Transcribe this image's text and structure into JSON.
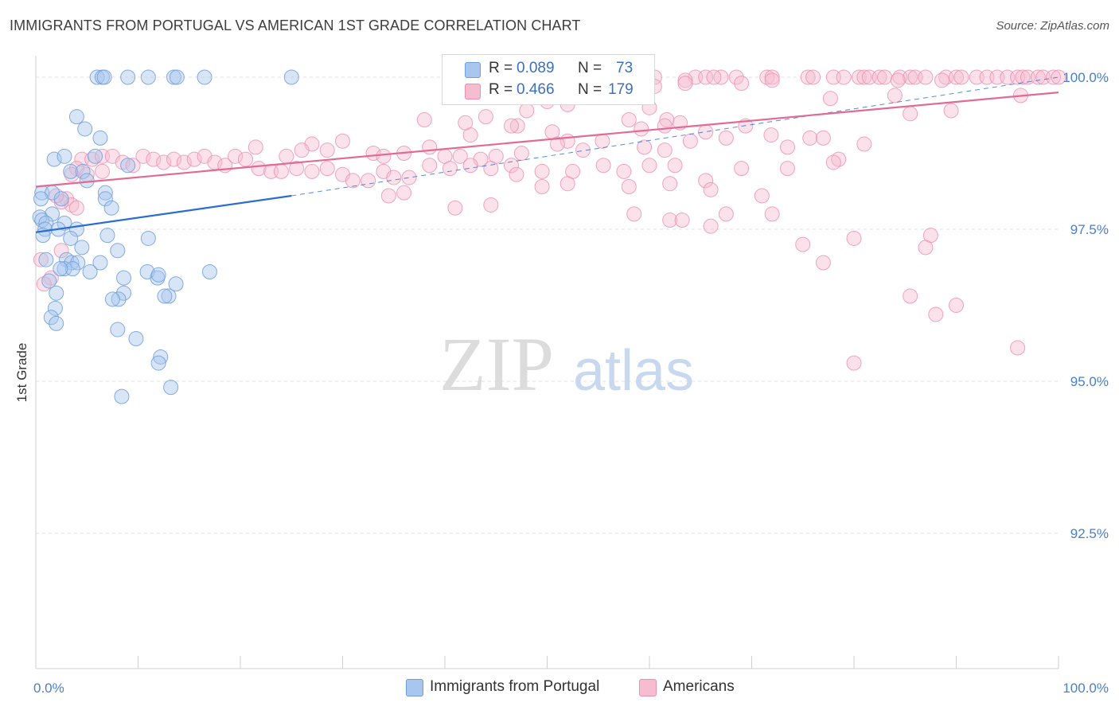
{
  "header": {
    "title": "IMMIGRANTS FROM PORTUGAL VS AMERICAN 1ST GRADE CORRELATION CHART",
    "source": "Source: ZipAtlas.com"
  },
  "watermark": {
    "zip": "ZIP",
    "atlas": "atlas"
  },
  "legend": {
    "series1": {
      "r_label": "R = ",
      "r_value": "0.089",
      "n_label": "N = ",
      "n_value": "73"
    },
    "series2": {
      "r_label": "R = ",
      "r_value": "0.466",
      "n_label": "N = ",
      "n_value": "179"
    }
  },
  "colors": {
    "blue_fill": "#a9c6ee",
    "blue_stroke": "#6f9fdc",
    "blue_line": "#2a6dd1",
    "pink_fill": "#f6bcd0",
    "pink_stroke": "#ec8fb0",
    "pink_line": "#e26b96",
    "tick": "#4a7fc8"
  },
  "chart_data": {
    "type": "scatter",
    "title": "IMMIGRANTS FROM PORTUGAL VS AMERICAN 1ST GRADE CORRELATION CHART",
    "xlabel": "",
    "ylabel": "1st Grade",
    "xlim": [
      0,
      100
    ],
    "ylim": [
      90.0,
      100.3
    ],
    "x_ticks": [
      "0.0%",
      "100.0%"
    ],
    "y_ticks": [
      {
        "value": 100.0,
        "label": "100.0%"
      },
      {
        "value": 97.5,
        "label": "97.5%"
      },
      {
        "value": 95.0,
        "label": "95.0%"
      },
      {
        "value": 92.5,
        "label": "92.5%"
      }
    ],
    "grid": true,
    "legend_position": "top-center",
    "series": [
      {
        "name": "Immigrants from Portugal",
        "r": 0.089,
        "n": 73,
        "trend": {
          "x": [
            0,
            25
          ],
          "y": [
            97.45,
            98.05
          ],
          "dashed_to": [
            100,
            100.0
          ]
        },
        "points": [
          [
            6.0,
            100.0
          ],
          [
            6.5,
            100.0
          ],
          [
            6.7,
            100.0
          ],
          [
            9.0,
            100.0
          ],
          [
            11.0,
            100.0
          ],
          [
            13.5,
            100.0
          ],
          [
            13.8,
            100.0
          ],
          [
            16.5,
            100.0
          ],
          [
            25.0,
            100.0
          ],
          [
            4.0,
            99.35
          ],
          [
            4.8,
            99.15
          ],
          [
            6.3,
            99.0
          ],
          [
            5.8,
            98.7
          ],
          [
            1.8,
            98.65
          ],
          [
            2.8,
            98.7
          ],
          [
            3.4,
            98.45
          ],
          [
            4.6,
            98.45
          ],
          [
            9.0,
            98.55
          ],
          [
            5.0,
            98.3
          ],
          [
            0.6,
            98.1
          ],
          [
            1.6,
            98.1
          ],
          [
            0.5,
            98.0
          ],
          [
            6.8,
            98.1
          ],
          [
            6.8,
            98.0
          ],
          [
            2.5,
            98.0
          ],
          [
            7.4,
            97.85
          ],
          [
            1.6,
            97.75
          ],
          [
            0.4,
            97.7
          ],
          [
            0.6,
            97.65
          ],
          [
            1.0,
            97.6
          ],
          [
            2.8,
            97.6
          ],
          [
            0.9,
            97.5
          ],
          [
            2.2,
            97.5
          ],
          [
            4.0,
            97.5
          ],
          [
            0.7,
            97.4
          ],
          [
            7.0,
            97.4
          ],
          [
            11.0,
            97.35
          ],
          [
            3.4,
            97.35
          ],
          [
            4.5,
            97.2
          ],
          [
            8.0,
            97.15
          ],
          [
            1.0,
            97.0
          ],
          [
            3.0,
            97.0
          ],
          [
            3.5,
            96.95
          ],
          [
            4.1,
            96.95
          ],
          [
            6.3,
            96.95
          ],
          [
            2.8,
            96.85
          ],
          [
            3.6,
            96.85
          ],
          [
            2.4,
            96.85
          ],
          [
            5.3,
            96.8
          ],
          [
            10.9,
            96.8
          ],
          [
            17.0,
            96.8
          ],
          [
            8.6,
            96.7
          ],
          [
            11.9,
            96.7
          ],
          [
            12.0,
            96.75
          ],
          [
            1.3,
            96.65
          ],
          [
            13.7,
            96.6
          ],
          [
            8.6,
            96.45
          ],
          [
            2.0,
            96.45
          ],
          [
            8.1,
            96.35
          ],
          [
            7.5,
            96.35
          ],
          [
            13.0,
            96.4
          ],
          [
            12.6,
            96.4
          ],
          [
            1.9,
            96.2
          ],
          [
            1.5,
            96.05
          ],
          [
            2.0,
            95.95
          ],
          [
            8.0,
            95.85
          ],
          [
            9.8,
            95.7
          ],
          [
            12.2,
            95.4
          ],
          [
            12.0,
            95.3
          ],
          [
            13.2,
            94.9
          ],
          [
            8.4,
            94.75
          ]
        ]
      },
      {
        "name": "Americans",
        "r": 0.466,
        "n": 179,
        "trend": {
          "x": [
            0,
            100
          ],
          "y": [
            98.2,
            99.75
          ]
        },
        "points": [
          [
            60.5,
            100.0
          ],
          [
            64.5,
            100.0
          ],
          [
            65.5,
            100.0
          ],
          [
            67.0,
            100.0
          ],
          [
            68.5,
            100.0
          ],
          [
            71.5,
            100.0
          ],
          [
            72.0,
            100.0
          ],
          [
            75.5,
            100.0
          ],
          [
            76.0,
            100.0
          ],
          [
            78.0,
            100.0
          ],
          [
            79.0,
            100.0
          ],
          [
            80.5,
            100.0
          ],
          [
            81.0,
            100.0
          ],
          [
            81.5,
            100.0
          ],
          [
            82.5,
            100.0
          ],
          [
            83.0,
            100.0
          ],
          [
            84.5,
            100.0
          ],
          [
            85.5,
            100.0
          ],
          [
            86.0,
            100.0
          ],
          [
            87.0,
            100.0
          ],
          [
            89.0,
            100.0
          ],
          [
            90.0,
            100.0
          ],
          [
            90.5,
            100.0
          ],
          [
            92.0,
            100.0
          ],
          [
            93.0,
            100.0
          ],
          [
            94.0,
            100.0
          ],
          [
            95.0,
            100.0
          ],
          [
            96.0,
            100.0
          ],
          [
            96.5,
            100.0
          ],
          [
            97.0,
            100.0
          ],
          [
            98.0,
            100.0
          ],
          [
            98.5,
            100.0
          ],
          [
            99.5,
            100.0
          ],
          [
            100.0,
            100.0
          ],
          [
            66.3,
            100.0
          ],
          [
            63.5,
            99.95
          ],
          [
            60.5,
            99.85
          ],
          [
            63.5,
            99.9
          ],
          [
            69.0,
            99.9
          ],
          [
            72.0,
            99.95
          ],
          [
            84.3,
            99.95
          ],
          [
            88.6,
            99.95
          ],
          [
            58.5,
            99.75
          ],
          [
            77.7,
            99.65
          ],
          [
            84.0,
            99.7
          ],
          [
            96.3,
            99.7
          ],
          [
            50.0,
            99.6
          ],
          [
            52.0,
            99.55
          ],
          [
            60.0,
            99.5
          ],
          [
            48.0,
            99.45
          ],
          [
            44.0,
            99.35
          ],
          [
            38.0,
            99.3
          ],
          [
            61.7,
            99.3
          ],
          [
            58.0,
            99.3
          ],
          [
            63.0,
            99.25
          ],
          [
            61.5,
            99.2
          ],
          [
            69.4,
            99.2
          ],
          [
            85.5,
            99.4
          ],
          [
            47.1,
            99.2
          ],
          [
            89.5,
            99.45
          ],
          [
            42.5,
            99.05
          ],
          [
            42.0,
            99.25
          ],
          [
            46.5,
            99.2
          ],
          [
            50.5,
            99.1
          ],
          [
            59.2,
            99.15
          ],
          [
            65.5,
            99.1
          ],
          [
            71.9,
            99.05
          ],
          [
            75.7,
            99.0
          ],
          [
            52.0,
            98.95
          ],
          [
            55.4,
            98.95
          ],
          [
            51.0,
            98.9
          ],
          [
            30.0,
            98.95
          ],
          [
            27.0,
            98.9
          ],
          [
            21.5,
            98.85
          ],
          [
            26.0,
            98.8
          ],
          [
            24.5,
            98.7
          ],
          [
            28.5,
            98.8
          ],
          [
            33.0,
            98.75
          ],
          [
            34.0,
            98.7
          ],
          [
            36.0,
            98.75
          ],
          [
            38.5,
            98.85
          ],
          [
            40.0,
            98.7
          ],
          [
            41.5,
            98.7
          ],
          [
            43.5,
            98.65
          ],
          [
            45.0,
            98.7
          ],
          [
            47.5,
            98.75
          ],
          [
            53.5,
            98.8
          ],
          [
            59.5,
            98.85
          ],
          [
            61.5,
            98.8
          ],
          [
            64.0,
            98.95
          ],
          [
            67.5,
            99.0
          ],
          [
            73.5,
            98.85
          ],
          [
            77.0,
            99.0
          ],
          [
            78.5,
            98.65
          ],
          [
            81.0,
            98.9
          ],
          [
            4.5,
            98.65
          ],
          [
            5.5,
            98.65
          ],
          [
            6.5,
            98.7
          ],
          [
            7.5,
            98.7
          ],
          [
            8.5,
            98.6
          ],
          [
            9.5,
            98.55
          ],
          [
            10.5,
            98.7
          ],
          [
            11.5,
            98.65
          ],
          [
            12.5,
            98.6
          ],
          [
            13.5,
            98.65
          ],
          [
            14.5,
            98.6
          ],
          [
            15.5,
            98.65
          ],
          [
            16.5,
            98.7
          ],
          [
            17.5,
            98.6
          ],
          [
            18.5,
            98.55
          ],
          [
            19.5,
            98.7
          ],
          [
            20.5,
            98.65
          ],
          [
            21.8,
            98.5
          ],
          [
            23.0,
            98.45
          ],
          [
            24.0,
            98.45
          ],
          [
            25.5,
            98.5
          ],
          [
            27.0,
            98.45
          ],
          [
            28.5,
            98.5
          ],
          [
            30.0,
            98.4
          ],
          [
            31.0,
            98.3
          ],
          [
            32.5,
            98.3
          ],
          [
            34.0,
            98.45
          ],
          [
            35.0,
            98.35
          ],
          [
            36.5,
            98.35
          ],
          [
            38.5,
            98.55
          ],
          [
            40.5,
            98.5
          ],
          [
            42.5,
            98.55
          ],
          [
            44.5,
            98.5
          ],
          [
            46.5,
            98.55
          ],
          [
            49.5,
            98.45
          ],
          [
            52.5,
            98.45
          ],
          [
            55.5,
            98.55
          ],
          [
            57.5,
            98.45
          ],
          [
            60.0,
            98.55
          ],
          [
            62.5,
            98.55
          ],
          [
            65.5,
            98.3
          ],
          [
            69.0,
            98.5
          ],
          [
            73.5,
            98.5
          ],
          [
            78.0,
            98.6
          ],
          [
            4.0,
            98.5
          ],
          [
            3.5,
            98.4
          ],
          [
            5.0,
            98.4
          ],
          [
            6.5,
            98.45
          ],
          [
            3.0,
            98.0
          ],
          [
            3.5,
            97.9
          ],
          [
            2.5,
            97.95
          ],
          [
            4.0,
            97.85
          ],
          [
            2.0,
            98.05
          ],
          [
            47.0,
            98.4
          ],
          [
            49.5,
            98.2
          ],
          [
            52.0,
            98.25
          ],
          [
            58.0,
            98.2
          ],
          [
            62.0,
            98.25
          ],
          [
            66.0,
            98.15
          ],
          [
            71.0,
            98.05
          ],
          [
            58.5,
            97.75
          ],
          [
            62.0,
            97.65
          ],
          [
            63.2,
            97.65
          ],
          [
            66.0,
            97.55
          ],
          [
            67.5,
            97.75
          ],
          [
            72.0,
            97.75
          ],
          [
            75.0,
            97.25
          ],
          [
            77.0,
            96.95
          ],
          [
            80.0,
            97.35
          ],
          [
            87.5,
            97.4
          ],
          [
            87.0,
            97.2
          ],
          [
            85.5,
            96.4
          ],
          [
            88.0,
            96.1
          ],
          [
            90.0,
            96.25
          ],
          [
            96.0,
            95.55
          ],
          [
            80.0,
            95.3
          ],
          [
            0.5,
            97.0
          ],
          [
            1.5,
            96.7
          ],
          [
            0.8,
            96.6
          ],
          [
            2.5,
            97.15
          ],
          [
            36.0,
            98.1
          ],
          [
            41.0,
            97.85
          ],
          [
            44.5,
            97.9
          ],
          [
            34.5,
            98.05
          ]
        ]
      }
    ]
  },
  "bottom_legend": {
    "item1": "Immigrants from Portugal",
    "item2": "Americans"
  }
}
